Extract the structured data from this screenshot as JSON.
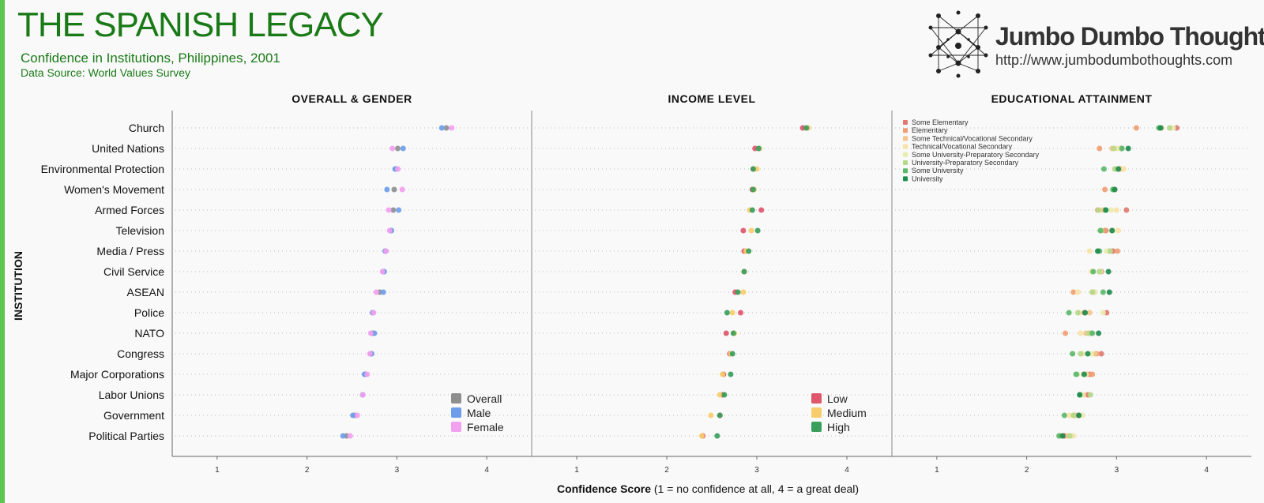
{
  "header": {
    "title": "THE SPANISH LEGACY",
    "subtitle": "Confidence in Institutions, Philippines, 2001",
    "source": "Data Source: World Values Survey",
    "brand_name": "Jumbo Dumbo Thoughts",
    "brand_url": "http://www.jumbodumbothoughts.com"
  },
  "chart_data": {
    "type": "scatter",
    "y_axis_title": "INSTITUTION",
    "x_axis_title_bold": "Confidence Score",
    "x_axis_title_rest": " (1 = no confidence at all, 4 = a great deal)",
    "x_ticks": [
      "1",
      "2",
      "3",
      "4"
    ],
    "xlim": [
      0.5,
      4.5
    ],
    "institutions": [
      "Church",
      "United Nations",
      "Environmental Protection",
      "Women's Movement",
      "Armed Forces",
      "Television",
      "Media / Press",
      "Civil Service",
      "ASEAN",
      "Police",
      "NATO",
      "Congress",
      "Major Corporations",
      "Labor Unions",
      "Government",
      "Political Parties"
    ],
    "panels": [
      {
        "title": "OVERALL & GENDER",
        "legend_position": "bottom-right",
        "series": [
          {
            "name": "Overall",
            "color": "#8f8f8f",
            "values": [
              3.55,
              3.01,
              2.99,
              2.97,
              2.96,
              2.93,
              2.87,
              2.85,
              2.81,
              2.73,
              2.73,
              2.71,
              2.65,
              2.62,
              2.53,
              2.44
            ]
          },
          {
            "name": "Male",
            "color": "#6d9eeb",
            "values": [
              3.5,
              3.07,
              2.98,
              2.89,
              3.02,
              2.94,
              2.87,
              2.86,
              2.85,
              2.73,
              2.75,
              2.72,
              2.64,
              2.62,
              2.51,
              2.4
            ]
          },
          {
            "name": "Female",
            "color": "#f2a0f0",
            "values": [
              3.61,
              2.95,
              3.01,
              3.06,
              2.91,
              2.92,
              2.88,
              2.84,
              2.77,
              2.74,
              2.71,
              2.7,
              2.67,
              2.62,
              2.56,
              2.48
            ]
          }
        ]
      },
      {
        "title": "INCOME LEVEL",
        "legend_position": "bottom-right",
        "series": [
          {
            "name": "Low",
            "color": "#e0566b",
            "values": [
              3.51,
              2.98,
              2.96,
              2.95,
              3.05,
              2.85,
              2.86,
              2.86,
              2.76,
              2.82,
              2.66,
              2.7,
              2.63,
              2.62,
              2.59,
              2.4
            ]
          },
          {
            "name": "Medium",
            "color": "#f7cd6b",
            "values": [
              3.57,
              3.03,
              3.0,
              2.97,
              2.92,
              2.94,
              2.88,
              2.86,
              2.85,
              2.73,
              2.75,
              2.71,
              2.62,
              2.59,
              2.49,
              2.39
            ]
          },
          {
            "name": "High",
            "color": "#3a9e5c",
            "values": [
              3.55,
              3.02,
              2.96,
              2.96,
              2.95,
              3.01,
              2.91,
              2.86,
              2.79,
              2.67,
              2.74,
              2.73,
              2.71,
              2.64,
              2.59,
              2.56
            ]
          }
        ]
      },
      {
        "title": "EDUCATIONAL ATTAINMENT",
        "legend_position": "top-left",
        "series": [
          {
            "name": "Some Elementary",
            "color": "#e07a70",
            "values": [
              3.67,
              3.05,
              3.03,
              2.98,
              3.11,
              2.88,
              2.96,
              2.83,
              2.75,
              2.89,
              2.71,
              2.83,
              2.7,
              2.68,
              2.58,
              2.42
            ]
          },
          {
            "name": "Elementary",
            "color": "#ef9f74",
            "values": [
              3.22,
              2.81,
              2.99,
              2.87,
              2.79,
              2.87,
              3.01,
              2.81,
              2.52,
              2.64,
              2.43,
              2.78,
              2.73,
              2.62,
              2.53,
              2.37
            ]
          },
          {
            "name": "Some Technical/Vocational Secondary",
            "color": "#f5c48a",
            "values": [
              3.5,
              2.95,
              3.05,
              2.98,
              2.85,
              2.95,
              2.92,
              2.82,
              2.73,
              2.7,
              2.66,
              2.76,
              2.67,
              2.63,
              2.55,
              2.46
            ]
          },
          {
            "name": "Technical/Vocational Secondary",
            "color": "#f9e2a6",
            "values": [
              3.6,
              3.0,
              3.08,
              2.96,
              3.0,
              3.02,
              2.7,
              2.72,
              2.57,
              2.58,
              2.6,
              2.62,
              2.63,
              2.6,
              2.48,
              2.52
            ]
          },
          {
            "name": "Some University-Preparatory Secondary",
            "color": "#e8ecae",
            "values": [
              3.63,
              3.03,
              3.0,
              2.97,
              2.94,
              2.96,
              2.89,
              2.82,
              2.76,
              2.85,
              2.7,
              2.72,
              2.65,
              2.62,
              2.62,
              2.49
            ]
          },
          {
            "name": "University-Preparatory Secondary",
            "color": "#b5d98b",
            "values": [
              3.59,
              2.97,
              2.98,
              2.96,
              2.8,
              2.83,
              2.93,
              2.81,
              2.73,
              2.57,
              2.69,
              2.6,
              2.56,
              2.71,
              2.52,
              2.48
            ]
          },
          {
            "name": "Some University",
            "color": "#5cb86a",
            "values": [
              3.47,
              3.06,
              2.86,
              2.96,
              2.88,
              2.82,
              2.81,
              2.74,
              2.85,
              2.47,
              2.73,
              2.51,
              2.55,
              2.59,
              2.42,
              2.36
            ]
          },
          {
            "name": "University",
            "color": "#1e8c4e",
            "values": [
              3.49,
              3.13,
              3.02,
              2.98,
              2.88,
              2.95,
              2.79,
              2.91,
              2.92,
              2.65,
              2.8,
              2.68,
              2.64,
              2.59,
              2.58,
              2.4
            ]
          }
        ]
      }
    ]
  }
}
